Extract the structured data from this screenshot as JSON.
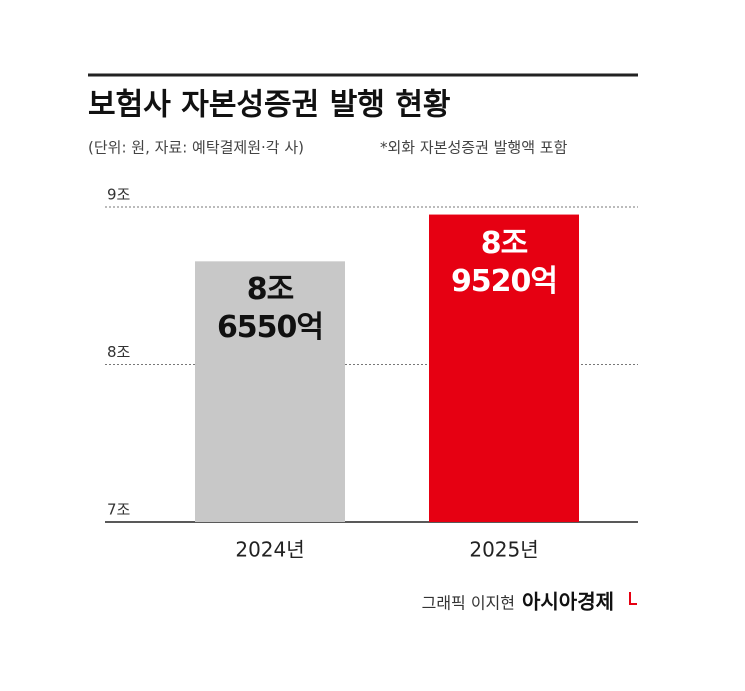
{
  "chart_data": {
    "type": "bar",
    "title": "보험사 자본성증권 발행 현황",
    "subtitle": "(단위: 원, 자료: 예탁결제원·각 사)",
    "note": "*외화 자본성증권 발행액 포함",
    "categories": [
      "2024년",
      "2025년"
    ],
    "values": [
      8.655,
      8.952
    ],
    "value_labels": [
      "8조\n6550억",
      "8조\n9520억"
    ],
    "colors": [
      "#c8c8c8",
      "#e60012"
    ],
    "ylim": [
      7,
      9
    ],
    "yticks": [
      {
        "value": 7,
        "label": "7조"
      },
      {
        "value": 8,
        "label": "8조"
      },
      {
        "value": 9,
        "label": "9조"
      }
    ],
    "grid": true,
    "credit": "그래픽 이지현",
    "publisher": "아시아경제"
  }
}
